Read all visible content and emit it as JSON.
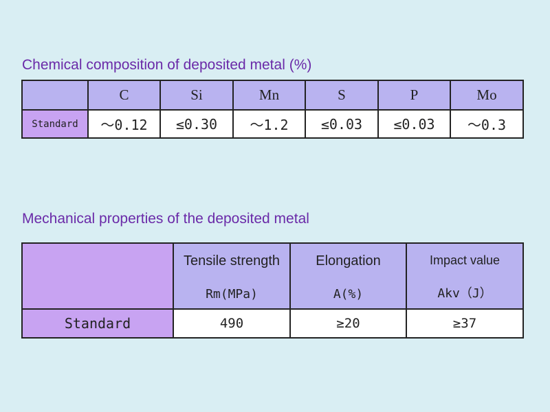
{
  "chemical": {
    "title": "Chemical composition of deposited metal (%)",
    "row_label": "Standard",
    "headers": [
      "C",
      "Si",
      "Mn",
      "S",
      "P",
      "Mo"
    ],
    "values": [
      "～0.12",
      "≤0.30",
      "～1.2",
      "≤0.03",
      "≤0.03",
      "～0.3"
    ]
  },
  "mechanical": {
    "title": "Mechanical properties of the deposited metal",
    "row_label": "Standard",
    "headers": [
      {
        "name": "Tensile strength",
        "unit": "Rm(MPa)"
      },
      {
        "name": "Elongation",
        "unit": "A(%)"
      },
      {
        "name": "Impact value",
        "unit": "Akv（J）"
      }
    ],
    "values": [
      "490",
      "≥20",
      "≥37"
    ]
  },
  "colors": {
    "background": "#d9eef3",
    "title": "#6a2aa8",
    "header_cell": "#b9b3f0",
    "label_cell": "#c8a3f2",
    "value_cell": "#ffffff",
    "border": "#222222"
  }
}
